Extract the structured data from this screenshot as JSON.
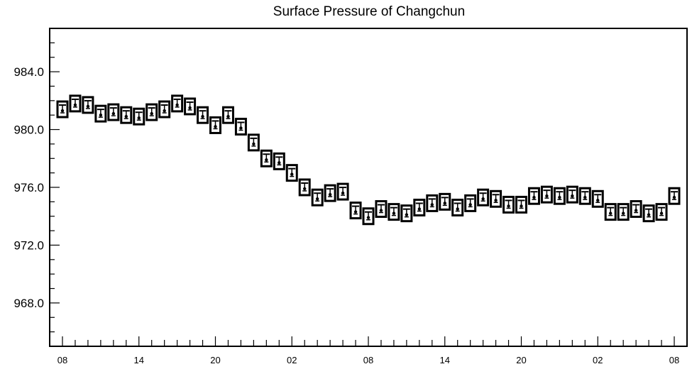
{
  "chart_data": {
    "type": "scatter",
    "title": "Surface Pressure of Changchun",
    "xlabel": "",
    "ylabel": "",
    "ylim": [
      965.0,
      987.0
    ],
    "yticks": [
      968.0,
      972.0,
      976.0,
      980.0,
      984.0
    ],
    "ytick_labels": [
      "968.0",
      "972.0",
      "976.0",
      "980.0",
      "984.0"
    ],
    "xlim": [
      0,
      48
    ],
    "xticks": [
      0,
      6,
      12,
      18,
      24,
      30,
      36,
      42,
      48
    ],
    "xtick_labels": [
      "08",
      "14",
      "20",
      "02",
      "08",
      "14",
      "20",
      "02",
      "08"
    ],
    "grid": false,
    "marker": "station-model box",
    "x": [
      0,
      1,
      2,
      3,
      4,
      5,
      6,
      7,
      8,
      9,
      10,
      11,
      12,
      13,
      14,
      15,
      16,
      17,
      18,
      19,
      20,
      21,
      22,
      23,
      24,
      25,
      26,
      27,
      28,
      29,
      30,
      31,
      32,
      33,
      34,
      35,
      36,
      37,
      38,
      39,
      40,
      41,
      42,
      43,
      44,
      45,
      46,
      47,
      48
    ],
    "values": [
      981.4,
      981.8,
      981.7,
      981.1,
      981.2,
      981.0,
      980.9,
      981.2,
      981.4,
      981.8,
      981.6,
      981.0,
      980.3,
      981.0,
      980.2,
      979.1,
      978.0,
      977.8,
      977.0,
      976.0,
      975.3,
      975.6,
      975.7,
      974.4,
      974.0,
      974.5,
      974.3,
      974.2,
      974.6,
      974.9,
      975.0,
      974.6,
      974.9,
      975.3,
      975.2,
      974.8,
      974.8,
      975.4,
      975.5,
      975.4,
      975.5,
      975.4,
      975.2,
      974.3,
      974.3,
      974.5,
      974.2,
      974.3,
      975.4
    ]
  }
}
